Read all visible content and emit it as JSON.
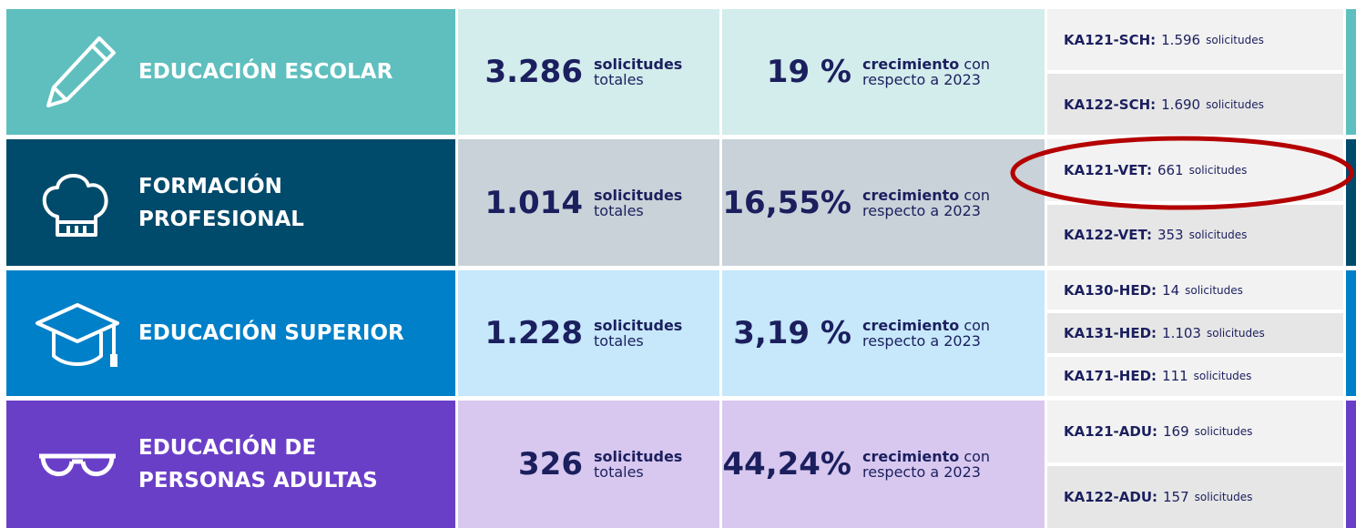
{
  "rows": [
    {
      "name_lines": [
        "EDUCACIÓN ESCOLAR"
      ],
      "total": "3.286",
      "total_unit_1": "solicitudes",
      "total_unit_2": "totales",
      "growth": "19 %",
      "growth_label_bold": "crecimiento",
      "growth_label_rest": "con",
      "growth_label_2": "respecto a 2023",
      "actions": [
        {
          "code": "KA121-SCH:",
          "count": "1.596",
          "unit": "solicitudes"
        },
        {
          "code": "KA122-SCH:",
          "count": "1.690",
          "unit": "solicitudes"
        }
      ]
    },
    {
      "name_lines": [
        "FORMACIÓN",
        "PROFESIONAL"
      ],
      "total": "1.014",
      "total_unit_1": "solicitudes",
      "total_unit_2": "totales",
      "growth": "16,55%",
      "growth_label_bold": "crecimiento",
      "growth_label_rest": "con",
      "growth_label_2": "respecto a 2023",
      "actions": [
        {
          "code": "KA121-VET:",
          "count": "661",
          "unit": "solicitudes"
        },
        {
          "code": "KA122-VET:",
          "count": "353",
          "unit": "solicitudes"
        }
      ]
    },
    {
      "name_lines": [
        "EDUCACIÓN SUPERIOR"
      ],
      "total": "1.228",
      "total_unit_1": "solicitudes",
      "total_unit_2": "totales",
      "growth": "3,19 %",
      "growth_label_bold": "crecimiento",
      "growth_label_rest": "con",
      "growth_label_2": "respecto a 2023",
      "actions": [
        {
          "code": "KA130-HED:",
          "count": "14",
          "unit": "solicitudes"
        },
        {
          "code": "KA131-HED:",
          "count": "1.103",
          "unit": "solicitudes"
        },
        {
          "code": "KA171-HED:",
          "count": "111",
          "unit": "solicitudes"
        }
      ]
    },
    {
      "name_lines": [
        "EDUCACIÓN DE",
        "PERSONAS ADULTAS"
      ],
      "total": "326",
      "total_unit_1": "solicitudes",
      "total_unit_2": "totales",
      "growth": "44,24%",
      "growth_label_bold": "crecimiento",
      "growth_label_rest": "con",
      "growth_label_2": "respecto a 2023",
      "actions": [
        {
          "code": "KA121-ADU:",
          "count": "169",
          "unit": "solicitudes"
        },
        {
          "code": "KA122-ADU:",
          "count": "157",
          "unit": "solicitudes"
        }
      ]
    }
  ]
}
